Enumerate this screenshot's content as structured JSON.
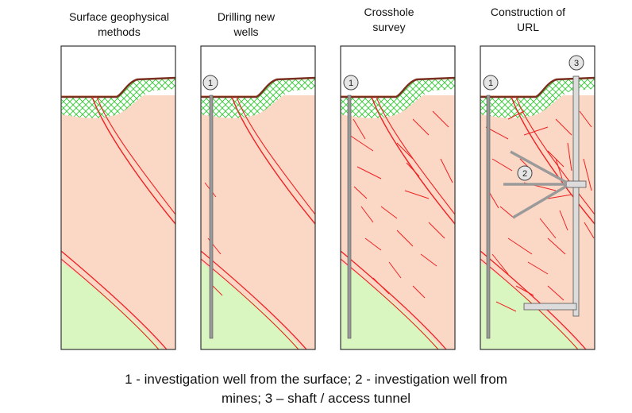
{
  "panels": [
    {
      "title": "Surface geophysical\nmethods",
      "markers": []
    },
    {
      "title": "Drilling new\nwells",
      "markers": [
        "1"
      ]
    },
    {
      "title": "Crosshole\nsurvey",
      "markers": [
        "1"
      ]
    },
    {
      "title": "Construction of\nURL",
      "markers": [
        "1",
        "2",
        "3"
      ]
    }
  ],
  "caption": {
    "line1": "1 - investigation well from the surface; 2 - investigation well from",
    "line2": "mines; 3 – shaft / access tunnel"
  },
  "colors": {
    "rock": "#fbd7c6",
    "lower_zone": "#d9f5c0",
    "weathered_hatch": "#33cc33",
    "fault": "#ee2222",
    "well": "#9a9a9a",
    "topsoil": "#7a3020"
  }
}
